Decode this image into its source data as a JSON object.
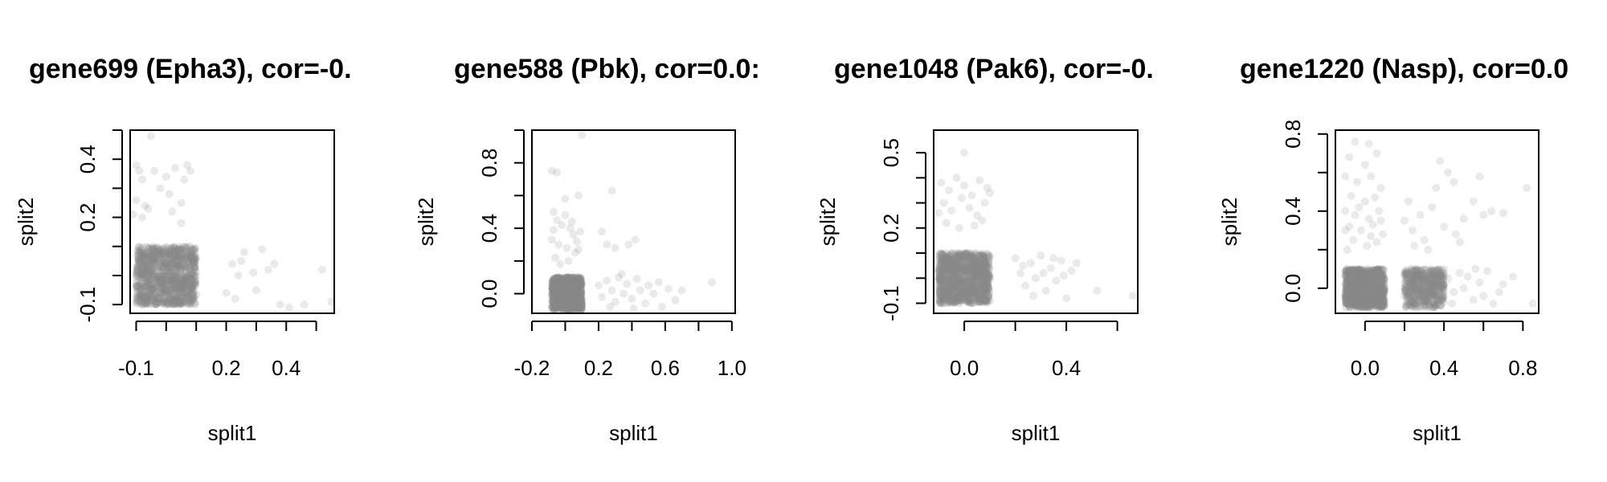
{
  "colors": {
    "points": "#888888",
    "frame": "#000000",
    "background": "#ffffff"
  },
  "chart_data": [
    {
      "type": "scatter",
      "title": "gene699 (Epha3), cor=-0.",
      "xlabel": "split1",
      "ylabel": "split2",
      "xlim": [
        -0.12,
        0.56
      ],
      "ylim": [
        -0.13,
        0.5
      ],
      "xticks": [
        -0.1,
        0.0,
        0.1,
        0.2,
        0.3,
        0.4,
        0.5
      ],
      "xticklabels": [
        "-0.1",
        "",
        "",
        "0.2",
        "",
        "0.4",
        ""
      ],
      "yticks": [
        -0.1,
        0.0,
        0.1,
        0.2,
        0.3,
        0.4,
        0.5
      ],
      "yticklabels": [
        "-0.1",
        "",
        "",
        "0.2",
        "",
        "0.4",
        ""
      ],
      "dense_cluster": {
        "x": [
          -0.1,
          0.1
        ],
        "y": [
          -0.1,
          0.1
        ]
      },
      "points": [
        [
          -0.1,
          0.38
        ],
        [
          -0.09,
          0.36
        ],
        [
          -0.08,
          0.33
        ],
        [
          -0.1,
          0.26
        ],
        [
          -0.07,
          0.24
        ],
        [
          -0.08,
          0.2
        ],
        [
          -0.06,
          0.23
        ],
        [
          -0.04,
          0.36
        ],
        [
          -0.02,
          0.3
        ],
        [
          0.0,
          0.34
        ],
        [
          0.01,
          0.28
        ],
        [
          0.03,
          0.37
        ],
        [
          0.05,
          0.25
        ],
        [
          0.06,
          0.33
        ],
        [
          0.07,
          0.38
        ],
        [
          0.08,
          0.36
        ],
        [
          0.05,
          0.18
        ],
        [
          -0.05,
          0.48
        ],
        [
          -0.11,
          0.21
        ],
        [
          0.02,
          0.22
        ],
        [
          0.22,
          0.04
        ],
        [
          0.24,
          0.0
        ],
        [
          0.25,
          0.05
        ],
        [
          0.26,
          0.08
        ],
        [
          0.23,
          -0.08
        ],
        [
          0.3,
          -0.05
        ],
        [
          0.32,
          0.09
        ],
        [
          0.34,
          0.02
        ],
        [
          0.36,
          0.04
        ],
        [
          0.29,
          0.01
        ],
        [
          0.38,
          -0.1
        ],
        [
          0.41,
          -0.11
        ],
        [
          0.46,
          -0.1
        ],
        [
          0.52,
          0.02
        ],
        [
          0.55,
          -0.09
        ],
        [
          0.2,
          -0.06
        ]
      ]
    },
    {
      "type": "scatter",
      "title": "gene588 (Pbk), cor=0.0:",
      "xlabel": "split1",
      "ylabel": "split2",
      "xlim": [
        -0.2,
        1.02
      ],
      "ylim": [
        -0.12,
        1.0
      ],
      "xticks": [
        -0.2,
        0.0,
        0.2,
        0.4,
        0.6,
        0.8,
        1.0
      ],
      "xticklabels": [
        "-0.2",
        "",
        "0.2",
        "",
        "0.6",
        "",
        "1.0"
      ],
      "yticks": [
        0.0,
        0.2,
        0.4,
        0.6,
        0.8,
        1.0
      ],
      "yticklabels": [
        "0.0",
        "",
        "0.4",
        "",
        "0.8",
        ""
      ],
      "dense_cluster": {
        "x": [
          -0.08,
          0.1
        ],
        "y": [
          -0.1,
          0.1
        ]
      },
      "points": [
        [
          -0.08,
          0.75
        ],
        [
          -0.05,
          0.74
        ],
        [
          0.08,
          0.6
        ],
        [
          0.1,
          0.97
        ],
        [
          0.28,
          0.63
        ],
        [
          0.0,
          0.58
        ],
        [
          -0.07,
          0.5
        ],
        [
          -0.05,
          0.45
        ],
        [
          -0.02,
          0.42
        ],
        [
          0.0,
          0.48
        ],
        [
          0.03,
          0.4
        ],
        [
          0.05,
          0.36
        ],
        [
          -0.08,
          0.33
        ],
        [
          -0.04,
          0.3
        ],
        [
          0.01,
          0.28
        ],
        [
          0.06,
          0.25
        ],
        [
          -0.06,
          0.22
        ],
        [
          0.02,
          0.2
        ],
        [
          0.07,
          0.32
        ],
        [
          0.09,
          0.38
        ],
        [
          -0.03,
          0.18
        ],
        [
          0.04,
          0.44
        ],
        [
          0.08,
          0.27
        ],
        [
          -0.07,
          0.39
        ],
        [
          0.22,
          0.38
        ],
        [
          0.25,
          0.3
        ],
        [
          0.3,
          0.28
        ],
        [
          0.38,
          0.3
        ],
        [
          0.42,
          0.33
        ],
        [
          0.2,
          0.05
        ],
        [
          0.22,
          -0.02
        ],
        [
          0.25,
          0.08
        ],
        [
          0.28,
          0.02
        ],
        [
          0.3,
          -0.05
        ],
        [
          0.32,
          0.1
        ],
        [
          0.35,
          0.0
        ],
        [
          0.37,
          0.06
        ],
        [
          0.4,
          -0.03
        ],
        [
          0.43,
          0.09
        ],
        [
          0.45,
          0.02
        ],
        [
          0.48,
          -0.06
        ],
        [
          0.5,
          0.05
        ],
        [
          0.53,
          0.0
        ],
        [
          0.56,
          0.07
        ],
        [
          0.58,
          -0.08
        ],
        [
          0.62,
          0.03
        ],
        [
          0.66,
          -0.04
        ],
        [
          0.7,
          0.02
        ],
        [
          0.88,
          0.07
        ],
        [
          0.27,
          -0.08
        ],
        [
          0.34,
          0.12
        ],
        [
          0.41,
          -0.09
        ]
      ]
    },
    {
      "type": "scatter",
      "title": "gene1048 (Pak6), cor=-0.",
      "xlabel": "split1",
      "ylabel": "split2",
      "xlim": [
        -0.12,
        0.68
      ],
      "ylim": [
        -0.14,
        0.59
      ],
      "xticks": [
        0.0,
        0.2,
        0.4,
        0.6
      ],
      "xticklabels": [
        "0.0",
        "",
        "0.4",
        ""
      ],
      "yticks": [
        -0.1,
        0.0,
        0.1,
        0.2,
        0.3,
        0.4,
        0.5
      ],
      "yticklabels": [
        "-0.1",
        "",
        "",
        "0.2",
        "",
        "",
        "0.5"
      ],
      "dense_cluster": {
        "x": [
          -0.1,
          0.1
        ],
        "y": [
          -0.1,
          0.1
        ]
      },
      "points": [
        [
          0.0,
          0.5
        ],
        [
          -0.09,
          0.38
        ],
        [
          -0.06,
          0.35
        ],
        [
          -0.03,
          0.4
        ],
        [
          0.0,
          0.37
        ],
        [
          0.03,
          0.33
        ],
        [
          0.06,
          0.39
        ],
        [
          0.09,
          0.36
        ],
        [
          -0.08,
          0.3
        ],
        [
          -0.05,
          0.27
        ],
        [
          -0.01,
          0.32
        ],
        [
          0.02,
          0.28
        ],
        [
          0.05,
          0.25
        ],
        [
          0.08,
          0.3
        ],
        [
          -0.07,
          0.22
        ],
        [
          -0.02,
          0.2
        ],
        [
          0.04,
          0.21
        ],
        [
          0.07,
          0.23
        ],
        [
          -0.1,
          0.26
        ],
        [
          0.1,
          0.34
        ],
        [
          0.2,
          0.08
        ],
        [
          0.22,
          0.02
        ],
        [
          0.24,
          -0.03
        ],
        [
          0.26,
          0.06
        ],
        [
          0.28,
          0.0
        ],
        [
          0.3,
          0.09
        ],
        [
          0.32,
          -0.05
        ],
        [
          0.34,
          0.04
        ],
        [
          0.36,
          -0.01
        ],
        [
          0.38,
          0.07
        ],
        [
          0.4,
          -0.08
        ],
        [
          0.42,
          0.03
        ],
        [
          0.23,
          0.05
        ],
        [
          0.27,
          -0.07
        ],
        [
          0.31,
          0.02
        ],
        [
          0.35,
          0.08
        ],
        [
          0.39,
          0.01
        ],
        [
          0.44,
          0.06
        ],
        [
          0.52,
          -0.05
        ],
        [
          0.66,
          -0.07
        ]
      ]
    },
    {
      "type": "scatter",
      "title": "gene1220 (Nasp), cor=0.0",
      "xlabel": "split1",
      "ylabel": "split2",
      "xlim": [
        -0.15,
        0.88
      ],
      "ylim": [
        -0.13,
        0.82
      ],
      "xticks": [
        0.0,
        0.2,
        0.4,
        0.6,
        0.8
      ],
      "xticklabels": [
        "0.0",
        "",
        "0.4",
        "",
        "0.8"
      ],
      "yticks": [
        0.0,
        0.2,
        0.4,
        0.6,
        0.8
      ],
      "yticklabels": [
        "0.0",
        "",
        "0.4",
        "",
        "0.8"
      ],
      "dense_cluster": {
        "x": [
          -0.1,
          0.1
        ],
        "y": [
          -0.1,
          0.1
        ]
      },
      "secondary_cluster": {
        "x": [
          0.2,
          0.4
        ],
        "y": [
          -0.1,
          0.1
        ]
      },
      "points": [
        [
          -0.05,
          0.76
        ],
        [
          0.02,
          0.75
        ],
        [
          -0.08,
          0.68
        ],
        [
          0.0,
          0.64
        ],
        [
          0.06,
          0.7
        ],
        [
          -0.1,
          0.58
        ],
        [
          -0.04,
          0.55
        ],
        [
          0.03,
          0.58
        ],
        [
          0.08,
          0.52
        ],
        [
          -0.07,
          0.48
        ],
        [
          0.0,
          0.45
        ],
        [
          0.05,
          0.47
        ],
        [
          -0.1,
          0.4
        ],
        [
          -0.05,
          0.38
        ],
        [
          0.02,
          0.36
        ],
        [
          0.07,
          0.4
        ],
        [
          -0.08,
          0.32
        ],
        [
          -0.02,
          0.3
        ],
        [
          0.04,
          0.33
        ],
        [
          0.09,
          0.28
        ],
        [
          -0.06,
          0.25
        ],
        [
          0.01,
          0.22
        ],
        [
          0.06,
          0.24
        ],
        [
          -0.09,
          0.2
        ],
        [
          0.03,
          0.27
        ],
        [
          -0.03,
          0.42
        ],
        [
          0.08,
          0.35
        ],
        [
          -0.1,
          0.3
        ],
        [
          0.2,
          0.35
        ],
        [
          0.24,
          0.3
        ],
        [
          0.28,
          0.38
        ],
        [
          0.3,
          0.25
        ],
        [
          0.34,
          0.42
        ],
        [
          0.36,
          0.52
        ],
        [
          0.38,
          0.66
        ],
        [
          0.42,
          0.6
        ],
        [
          0.45,
          0.55
        ],
        [
          0.4,
          0.32
        ],
        [
          0.46,
          0.28
        ],
        [
          0.5,
          0.36
        ],
        [
          0.55,
          0.45
        ],
        [
          0.58,
          0.58
        ],
        [
          0.6,
          0.38
        ],
        [
          0.64,
          0.4
        ],
        [
          0.7,
          0.39
        ],
        [
          0.82,
          0.52
        ],
        [
          0.25,
          0.22
        ],
        [
          0.32,
          0.2
        ],
        [
          0.22,
          0.45
        ],
        [
          0.48,
          0.24
        ],
        [
          0.42,
          0.05
        ],
        [
          0.45,
          -0.02
        ],
        [
          0.48,
          0.08
        ],
        [
          0.5,
          0.0
        ],
        [
          0.52,
          0.06
        ],
        [
          0.55,
          -0.06
        ],
        [
          0.58,
          0.03
        ],
        [
          0.6,
          -0.04
        ],
        [
          0.62,
          0.09
        ],
        [
          0.65,
          -0.08
        ],
        [
          0.7,
          0.02
        ],
        [
          0.75,
          0.06
        ],
        [
          0.85,
          -0.08
        ],
        [
          0.44,
          -0.08
        ],
        [
          0.56,
          0.1
        ],
        [
          0.68,
          -0.02
        ]
      ]
    }
  ]
}
